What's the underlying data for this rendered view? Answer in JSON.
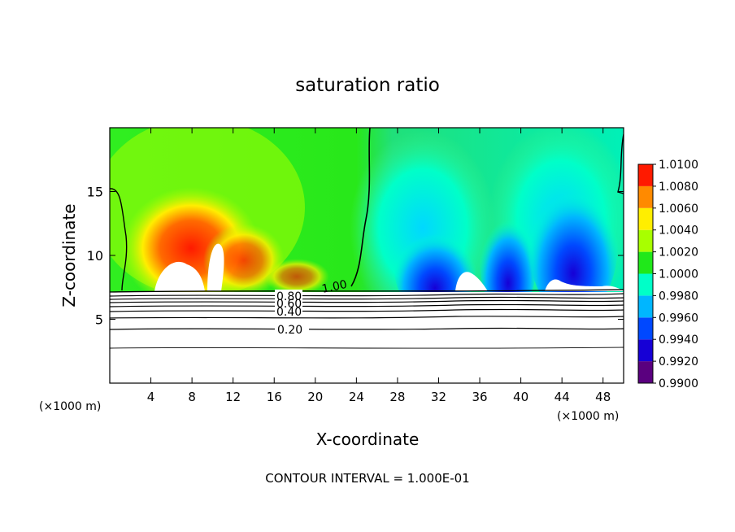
{
  "chart_data": {
    "type": "heatmap",
    "title": "saturation ratio",
    "xlabel": "X-coordinate",
    "ylabel": "Z-coordinate",
    "x_unit_left": "(×1000 m)",
    "x_unit_right": "(×1000 m)",
    "footer": "CONTOUR INTERVAL = 1.000E-01",
    "xlim": [
      0,
      50
    ],
    "ylim": [
      0,
      20
    ],
    "x_ticks": [
      4,
      8,
      12,
      16,
      20,
      24,
      28,
      32,
      36,
      40,
      44,
      48
    ],
    "y_ticks": [
      5,
      10,
      15
    ],
    "colorbar": {
      "levels": [
        0.99,
        0.992,
        0.994,
        0.996,
        0.998,
        1.0,
        1.002,
        1.004,
        1.006,
        1.008,
        1.01
      ],
      "labels": [
        "0.9900",
        "0.9920",
        "0.9940",
        "0.9960",
        "0.9980",
        "1.0000",
        "1.0020",
        "1.0040",
        "1.0060",
        "1.0080",
        "1.0100"
      ],
      "colors": [
        "#5a007f",
        "#1600d6",
        "#0048ff",
        "#00b6ff",
        "#00ffc8",
        "#20e81a",
        "#a8ff00",
        "#ffee00",
        "#ff8a00",
        "#ff1a00",
        "#ff8888"
      ]
    },
    "contours_below": [
      {
        "label": "0.80",
        "z": 6.9
      },
      {
        "label": "0.60",
        "z": 6.4
      },
      {
        "label": "0.40",
        "z": 5.7
      },
      {
        "label": "0.20",
        "z": 4.4
      }
    ],
    "contour_above": {
      "label": "1.00",
      "z": 7.6
    },
    "ground_level_z": 7.3
  }
}
